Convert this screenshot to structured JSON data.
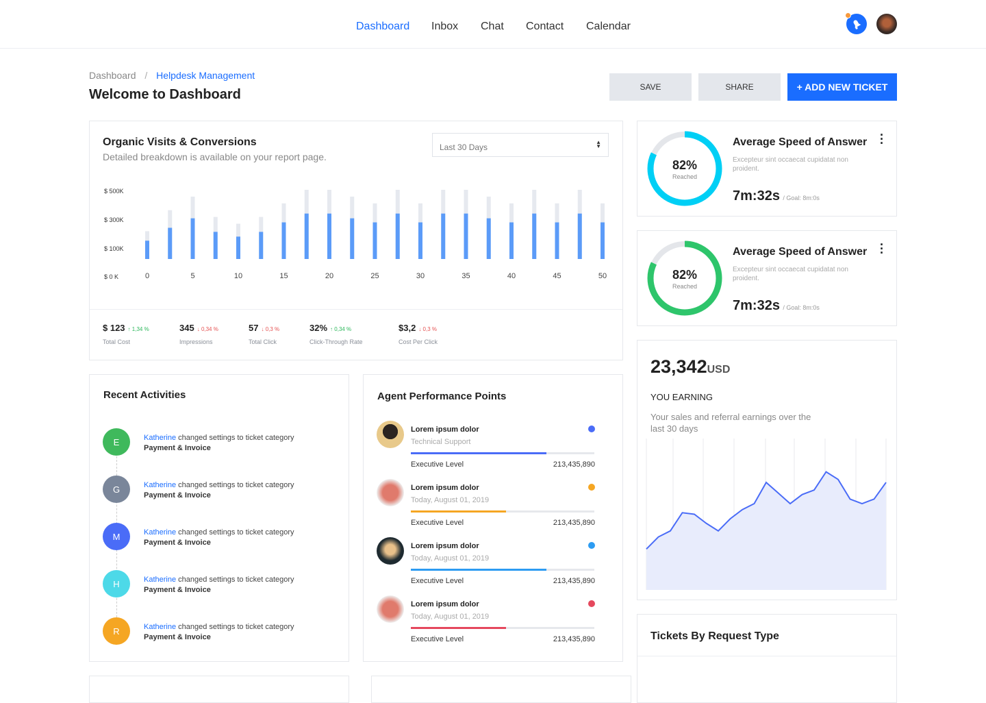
{
  "nav": {
    "items": [
      "Dashboard",
      "Inbox",
      "Chat",
      "Contact",
      "Calendar"
    ],
    "active": "Dashboard"
  },
  "header": {
    "icons": [
      "bell-icon",
      "user-avatar"
    ],
    "accent": "#1a6dff"
  },
  "breadcrumb": {
    "root": "Dashboard",
    "sep": "/",
    "current": "Helpdesk Management"
  },
  "page_title": "Welcome to Dashboard",
  "toolbar": {
    "save": "SAVE",
    "share": "SHARE",
    "add": "+ ADD NEW TICKET"
  },
  "visits": {
    "title": "Organic Visits & Conversions",
    "subtitle": "Detailed breakdown is available on your report page.",
    "range": "Last 30 Days",
    "stats": [
      {
        "value": "$ 123",
        "change": "1,34 %",
        "dir": "up",
        "label": "Total Cost"
      },
      {
        "value": "345",
        "change": "0,34 %",
        "dir": "down",
        "label": "Impressions"
      },
      {
        "value": "57",
        "change": "0,3 %",
        "dir": "down",
        "label": "Total Click"
      },
      {
        "value": "32%",
        "change": "0,34 %",
        "dir": "up",
        "label": "Click-Through Rate"
      },
      {
        "value": "$3,2",
        "change": "0,3 %",
        "dir": "down",
        "label": "Cost Per Click"
      }
    ]
  },
  "chart_data": [
    {
      "type": "bar",
      "ytick_labels": [
        "$ 500K",
        "$ 300K",
        "$ 100K",
        "$ 0 K"
      ],
      "xtick_labels": [
        "0",
        "5",
        "10",
        "15",
        "20",
        "25",
        "30",
        "35",
        "40",
        "45",
        "50"
      ],
      "x": [
        0,
        2.5,
        5,
        7.5,
        10,
        12.5,
        15,
        17.5,
        20,
        22.5,
        25,
        27.5,
        30,
        32.5,
        35,
        37.5,
        40,
        42.5,
        45,
        47.5,
        50
      ],
      "series": [
        {
          "values": [
            135,
            230,
            300,
            200,
            165,
            200,
            270,
            335,
            335,
            300,
            270,
            335,
            270,
            335,
            335,
            300,
            270,
            335,
            270,
            335,
            270
          ],
          "color": "#5b9bf8"
        },
        {
          "values": [
            205,
            360,
            460,
            310,
            260,
            310,
            410,
            510,
            510,
            460,
            410,
            510,
            410,
            510,
            510,
            460,
            410,
            510,
            410,
            510,
            410
          ],
          "color": "#e6e9ef"
        }
      ],
      "ylim": [
        0,
        510
      ],
      "grid": false
    },
    {
      "type": "area",
      "x": [
        0,
        1,
        2,
        3,
        4,
        5,
        6,
        7,
        8,
        9,
        10,
        11,
        12,
        13,
        14,
        15,
        16,
        17,
        18,
        19,
        20
      ],
      "values": [
        27,
        35,
        39,
        51,
        50,
        44,
        39,
        47,
        53,
        57,
        71,
        64,
        57,
        63,
        66,
        78,
        73,
        60,
        57,
        60,
        71
      ],
      "ylim": [
        0,
        100
      ],
      "color": "#4a6cf7",
      "fill": "#e8ecfc",
      "grid": "vertical"
    }
  ],
  "speed_cards": [
    {
      "percent": "82%",
      "percent_value": 82,
      "reached": "Reached",
      "title": "Average Speed of Answer",
      "desc": "Excepteur sint occaecat cupidatat non proident.",
      "time": "7m:32s",
      "goal": "/ Goal: 8m:0s",
      "color": "#00cff5"
    },
    {
      "percent": "82%",
      "percent_value": 82,
      "reached": "Reached",
      "title": "Average Speed of Answer",
      "desc": "Excepteur sint occaecat cupidatat non proident.",
      "time": "7m:32s",
      "goal": "/ Goal: 8m:0s",
      "color": "#2ec56b"
    }
  ],
  "earning": {
    "amount": "23,342",
    "unit": "USD",
    "label": "YOU EARNING",
    "desc": "Your sales and referral earnings over the last 30 days"
  },
  "activities": {
    "title": "Recent Activities",
    "items": [
      {
        "initial": "E",
        "color": "#3fb95c",
        "who": "Katherine",
        "text": " changed settings to ticket category",
        "cat": "Payment & Invoice"
      },
      {
        "initial": "G",
        "color": "#7a869a",
        "who": "Katherine",
        "text": " changed settings to ticket category",
        "cat": "Payment & Invoice"
      },
      {
        "initial": "M",
        "color": "#4a6cf7",
        "who": "Katherine",
        "text": " changed settings to ticket category",
        "cat": "Payment & Invoice"
      },
      {
        "initial": "H",
        "color": "#4dd9e8",
        "who": "Katherine",
        "text": " changed settings to ticket category",
        "cat": "Payment & Invoice"
      },
      {
        "initial": "R",
        "color": "#f5a623",
        "who": "Katherine",
        "text": " changed settings to ticket category",
        "cat": "Payment & Invoice"
      }
    ]
  },
  "agents": {
    "title": "Agent Performance Points",
    "items": [
      {
        "name": "Lorem ipsum dolor",
        "sub": "Technical Support",
        "level": "Executive Level",
        "value": "213,435,890",
        "progress": 74,
        "color": "#4a6cf7"
      },
      {
        "name": "Lorem ipsum dolor",
        "sub": "Today, August 01, 2019",
        "level": "Executive Level",
        "value": "213,435,890",
        "progress": 52,
        "color": "#f5a623"
      },
      {
        "name": "Lorem ipsum dolor",
        "sub": "Today, August 01, 2019",
        "level": "Executive Level",
        "value": "213,435,890",
        "progress": 74,
        "color": "#2d9cf2"
      },
      {
        "name": "Lorem ipsum dolor",
        "sub": "Today, August 01, 2019",
        "level": "Executive Level",
        "value": "213,435,890",
        "progress": 52,
        "color": "#e5485d"
      }
    ]
  },
  "tickets": {
    "title": "Tickets By Request Type"
  }
}
